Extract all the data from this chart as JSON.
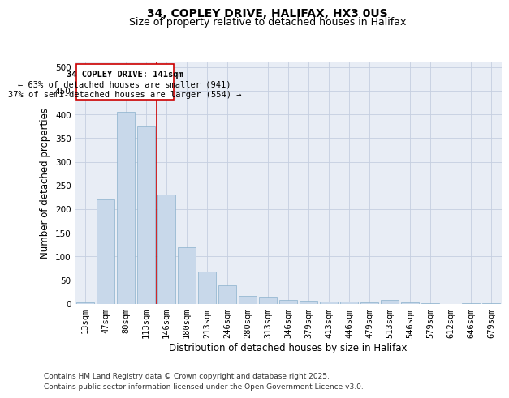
{
  "title_line1": "34, COPLEY DRIVE, HALIFAX, HX3 0US",
  "title_line2": "Size of property relative to detached houses in Halifax",
  "xlabel": "Distribution of detached houses by size in Halifax",
  "ylabel": "Number of detached properties",
  "categories": [
    "13sqm",
    "47sqm",
    "80sqm",
    "113sqm",
    "146sqm",
    "180sqm",
    "213sqm",
    "246sqm",
    "280sqm",
    "313sqm",
    "346sqm",
    "379sqm",
    "413sqm",
    "446sqm",
    "479sqm",
    "513sqm",
    "546sqm",
    "579sqm",
    "612sqm",
    "646sqm",
    "679sqm"
  ],
  "values": [
    2,
    220,
    405,
    375,
    230,
    120,
    68,
    38,
    17,
    13,
    8,
    6,
    5,
    5,
    3,
    7,
    2,
    1,
    0,
    1,
    1
  ],
  "bar_color": "#c8d8ea",
  "bar_edge_color": "#8ab0cc",
  "vline_color": "#cc0000",
  "vline_pos": 3.5,
  "annotation_line1": "34 COPLEY DRIVE: 141sqm",
  "annotation_line2": "← 63% of detached houses are smaller (941)",
  "annotation_line3": "37% of semi-detached houses are larger (554) →",
  "annotation_box_color": "#cc0000",
  "ylim": [
    0,
    510
  ],
  "yticks": [
    0,
    50,
    100,
    150,
    200,
    250,
    300,
    350,
    400,
    450,
    500
  ],
  "grid_color": "#c5cfe0",
  "background_color": "#e8edf5",
  "footer_line1": "Contains HM Land Registry data © Crown copyright and database right 2025.",
  "footer_line2": "Contains public sector information licensed under the Open Government Licence v3.0.",
  "title_fontsize": 10,
  "subtitle_fontsize": 9,
  "axis_label_fontsize": 8.5,
  "tick_fontsize": 7.5,
  "annotation_fontsize": 7.5,
  "footer_fontsize": 6.5
}
